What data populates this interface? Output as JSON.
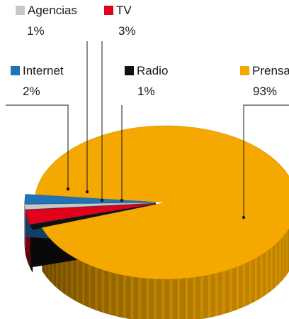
{
  "chart_data": {
    "type": "pie",
    "title": "",
    "labels": [
      "Agencias",
      "TV",
      "Internet",
      "Radio",
      "Prensa"
    ],
    "values": [
      1,
      3,
      2,
      1,
      93
    ],
    "value_labels": [
      "1%",
      "3%",
      "2%",
      "1%",
      "93%"
    ],
    "colors": [
      "#c8c8c8",
      "#e2001a",
      "#1f73b7",
      "#111111",
      "#f5a800"
    ],
    "style": "3d-exploded-pie",
    "legend": "inline-labels"
  }
}
